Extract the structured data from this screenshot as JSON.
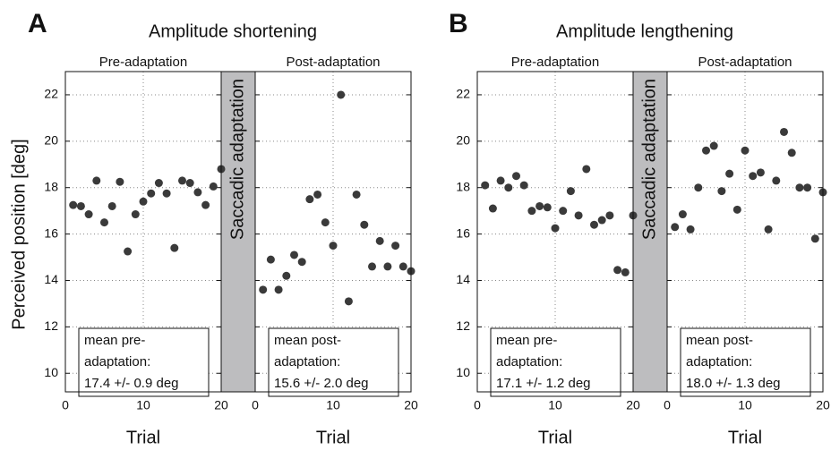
{
  "panels": [
    {
      "letter": "A",
      "title": "Amplitude shortening",
      "band_label": "Saccadic adaptation"
    },
    {
      "letter": "B",
      "title": "Amplitude lengthening",
      "band_label": "Saccadic adaptation"
    }
  ],
  "y_label": "Perceived position [deg]",
  "chart_data": [
    {
      "type": "scatter",
      "title": "Pre-adaptation",
      "x_label": "Trial",
      "color": "#3a3a3a",
      "grid": true,
      "x": [
        1,
        2,
        3,
        4,
        5,
        6,
        7,
        8,
        9,
        10,
        11,
        12,
        13,
        14,
        15,
        16,
        17,
        18,
        19,
        20
      ],
      "values": [
        17.25,
        17.2,
        16.85,
        18.3,
        16.5,
        17.2,
        18.25,
        15.25,
        16.85,
        17.4,
        17.75,
        18.2,
        17.75,
        15.4,
        18.3,
        18.2,
        17.8,
        17.25,
        18.05,
        18.8
      ],
      "xlim": [
        0,
        20
      ],
      "xticks": [
        0,
        10,
        20
      ],
      "ylim": [
        9.2,
        23
      ],
      "yticks": [
        10,
        12,
        14,
        16,
        18,
        20,
        22
      ],
      "annotation": [
        "mean pre-",
        "adaptation:",
        "17.4 +/- 0.9 deg"
      ]
    },
    {
      "type": "scatter",
      "title": "Post-adaptation",
      "x_label": "Trial",
      "color": "#3a3a3a",
      "grid": true,
      "x": [
        1,
        2,
        3,
        4,
        5,
        6,
        7,
        8,
        9,
        10,
        11,
        12,
        13,
        14,
        15,
        16,
        17,
        18,
        19,
        20
      ],
      "values": [
        13.6,
        14.9,
        13.6,
        14.2,
        15.1,
        14.8,
        17.5,
        17.7,
        16.5,
        15.5,
        22,
        13.1,
        17.7,
        16.4,
        14.6,
        15.7,
        14.6,
        15.5,
        14.6,
        14.4
      ],
      "xlim": [
        0,
        20
      ],
      "xticks": [
        0,
        10,
        20
      ],
      "ylim": [
        9.2,
        23
      ],
      "yticks": [
        10,
        12,
        14,
        16,
        18,
        20,
        22
      ],
      "annotation": [
        "mean post-",
        "adaptation:",
        "15.6 +/- 2.0 deg"
      ]
    },
    {
      "type": "scatter",
      "title": "Pre-adaptation",
      "x_label": "Trial",
      "color": "#3a3a3a",
      "grid": true,
      "x": [
        1,
        2,
        3,
        4,
        5,
        6,
        7,
        8,
        9,
        10,
        11,
        12,
        13,
        14,
        15,
        16,
        17,
        18,
        19,
        20
      ],
      "values": [
        18.1,
        17.1,
        18.3,
        18.0,
        18.5,
        18.1,
        17.0,
        17.2,
        17.15,
        16.25,
        17.0,
        17.85,
        16.8,
        18.8,
        16.4,
        16.6,
        16.8,
        14.45,
        14.35,
        16.8
      ],
      "xlim": [
        0,
        20
      ],
      "xticks": [
        0,
        10,
        20
      ],
      "ylim": [
        9.2,
        23
      ],
      "yticks": [
        10,
        12,
        14,
        16,
        18,
        20,
        22
      ],
      "annotation": [
        "mean pre-",
        "adaptation:",
        "17.1 +/- 1.2 deg"
      ]
    },
    {
      "type": "scatter",
      "title": "Post-adaptation",
      "x_label": "Trial",
      "color": "#3a3a3a",
      "grid": true,
      "x": [
        1,
        2,
        3,
        4,
        5,
        6,
        7,
        8,
        9,
        10,
        11,
        12,
        13,
        14,
        15,
        16,
        17,
        18,
        19,
        20
      ],
      "values": [
        16.3,
        16.85,
        16.2,
        18.0,
        19.6,
        19.8,
        17.85,
        18.6,
        17.05,
        19.6,
        18.5,
        18.65,
        16.2,
        18.3,
        20.4,
        19.5,
        18.0,
        18.0,
        15.8,
        17.8
      ],
      "xlim": [
        0,
        20
      ],
      "xticks": [
        0,
        10,
        20
      ],
      "ylim": [
        9.2,
        23
      ],
      "yticks": [
        10,
        12,
        14,
        16,
        18,
        20,
        22
      ],
      "annotation": [
        "mean post-",
        "adaptation:",
        "18.0 +/- 1.3 deg"
      ]
    }
  ]
}
